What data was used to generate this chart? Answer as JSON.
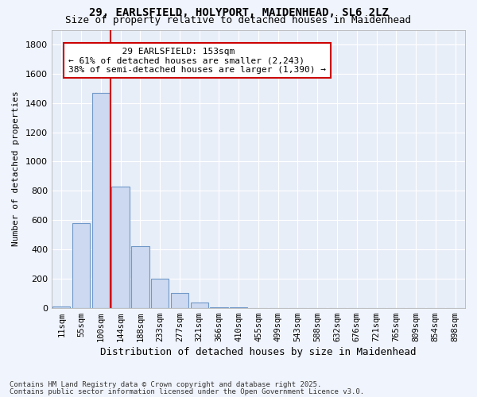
{
  "title_line1": "29, EARLSFIELD, HOLYPORT, MAIDENHEAD, SL6 2LZ",
  "title_line2": "Size of property relative to detached houses in Maidenhead",
  "xlabel": "Distribution of detached houses by size in Maidenhead",
  "ylabel": "Number of detached properties",
  "categories": [
    "11sqm",
    "55sqm",
    "100sqm",
    "144sqm",
    "188sqm",
    "233sqm",
    "277sqm",
    "321sqm",
    "366sqm",
    "410sqm",
    "455sqm",
    "499sqm",
    "543sqm",
    "588sqm",
    "632sqm",
    "676sqm",
    "721sqm",
    "765sqm",
    "809sqm",
    "854sqm",
    "898sqm"
  ],
  "values": [
    10,
    580,
    1470,
    830,
    420,
    200,
    100,
    35,
    5,
    2,
    1,
    0,
    0,
    0,
    0,
    0,
    0,
    0,
    0,
    0,
    0
  ],
  "bar_color": "#ccd9f0",
  "bar_edge_color": "#7098c8",
  "property_label": "29 EARLSFIELD: 153sqm",
  "annotation_line1": "← 61% of detached houses are smaller (2,243)",
  "annotation_line2": "38% of semi-detached houses are larger (1,390) →",
  "vline_color": "#cc0000",
  "annotation_box_color": "#ffffff",
  "annotation_box_edge": "#cc0000",
  "ylim": [
    0,
    1900
  ],
  "yticks": [
    0,
    200,
    400,
    600,
    800,
    1000,
    1200,
    1400,
    1600,
    1800
  ],
  "bg_color": "#f0f4fc",
  "plot_bg_color": "#e8eef8",
  "grid_color": "#ffffff",
  "footnote1": "Contains HM Land Registry data © Crown copyright and database right 2025.",
  "footnote2": "Contains public sector information licensed under the Open Government Licence v3.0."
}
